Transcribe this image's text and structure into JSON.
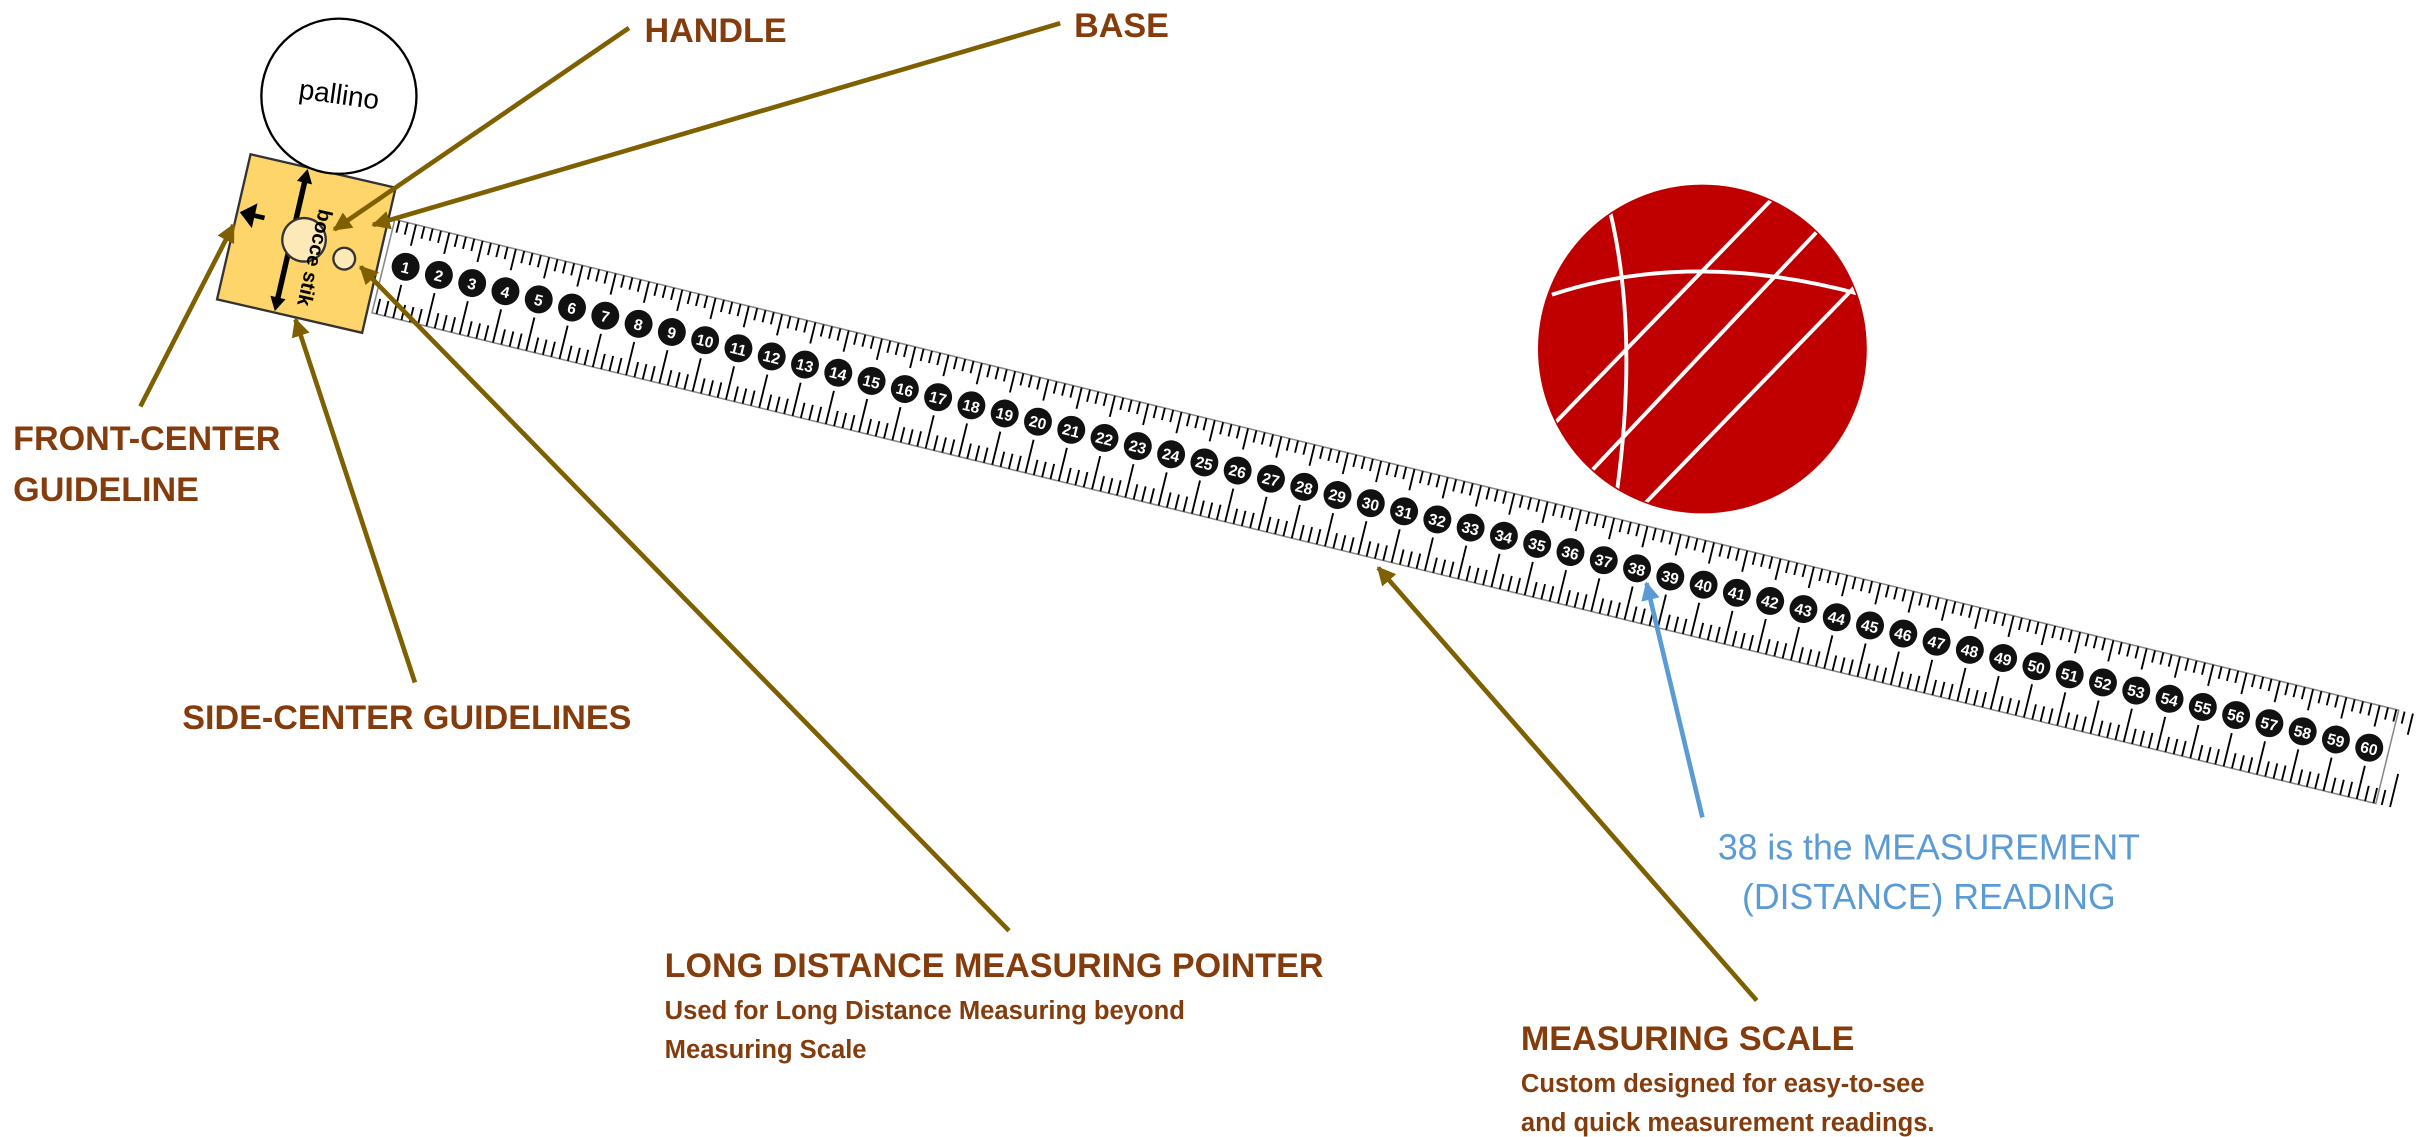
{
  "labels": {
    "handle": "HANDLE",
    "base": "BASE",
    "front_center": [
      "FRONT-CENTER",
      "GUIDELINE"
    ],
    "side_center": "SIDE-CENTER GUIDELINES",
    "long_pointer": {
      "title": "LONG DISTANCE MEASURING POINTER",
      "description": [
        "Used for Long Distance Measuring beyond",
        "Measuring Scale"
      ]
    },
    "measuring_scale": {
      "title": "MEASURING SCALE",
      "description": [
        "Custom designed for easy-to-see",
        "and quick measurement readings."
      ]
    },
    "reading": [
      "38 is the MEASUREMENT",
      "(DISTANCE) READING"
    ],
    "pallino": "pallino",
    "stik": "bocce stik"
  },
  "scale_numbers": [
    1,
    2,
    3,
    4,
    5,
    6,
    7,
    8,
    9,
    10,
    11,
    12,
    13,
    14,
    15,
    16,
    17,
    18,
    19,
    20,
    21,
    22,
    23,
    24,
    25,
    26,
    27,
    28,
    29,
    30,
    31,
    32,
    33,
    34,
    35,
    36,
    37,
    38,
    39,
    40,
    41,
    42,
    43,
    44,
    45,
    46,
    47,
    48,
    49,
    50,
    51,
    52,
    53,
    54,
    55,
    56,
    57,
    58,
    59,
    60
  ]
}
